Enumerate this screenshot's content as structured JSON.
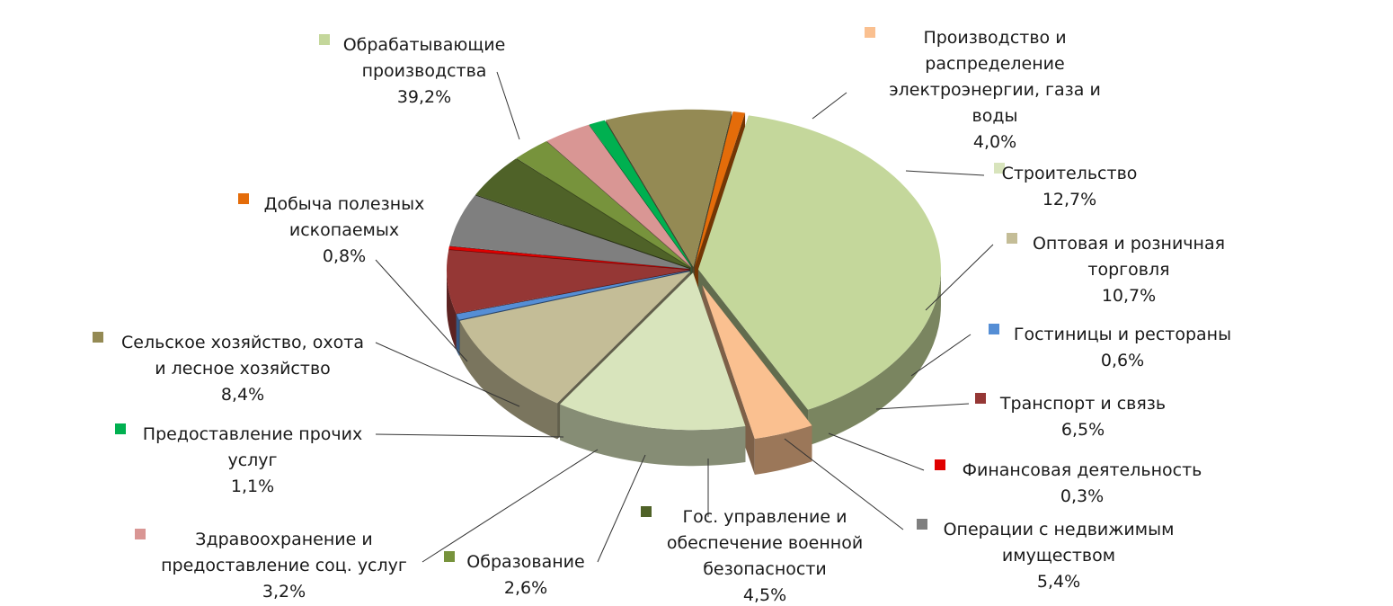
{
  "chart_data": {
    "type": "pie",
    "style": "3d-exploded",
    "title": "",
    "legend": "none",
    "unit": "%",
    "slices": [
      {
        "label_lines": [
          "Обрабатывающие",
          "производства"
        ],
        "value_text": "39,2%",
        "value": 39.2,
        "color": "#c4d79b"
      },
      {
        "label_lines": [
          "Производство и",
          "распределение",
          "электроэнергии, газа и",
          "воды"
        ],
        "value_text": "4,0%",
        "value": 4.0,
        "color": "#fac090"
      },
      {
        "label_lines": [
          "Строительство"
        ],
        "value_text": "12,7%",
        "value": 12.7,
        "color": "#d8e4bc"
      },
      {
        "label_lines": [
          "Оптовая и розничная",
          "торговля"
        ],
        "value_text": "10,7%",
        "value": 10.7,
        "color": "#c4bd97"
      },
      {
        "label_lines": [
          "Гостиницы и рестораны"
        ],
        "value_text": "0,6%",
        "value": 0.6,
        "color": "#558ed5"
      },
      {
        "label_lines": [
          "Транспорт и связь"
        ],
        "value_text": "6,5%",
        "value": 6.5,
        "color": "#953735"
      },
      {
        "label_lines": [
          "Финансовая деятельность"
        ],
        "value_text": "0,3%",
        "value": 0.3,
        "color": "#e00000"
      },
      {
        "label_lines": [
          "Операции с недвижимым",
          "имуществом"
        ],
        "value_text": "5,4%",
        "value": 5.4,
        "color": "#7f7f7f"
      },
      {
        "label_lines": [
          "Гос. управление и",
          "обеспечение военной",
          "безопасности"
        ],
        "value_text": "4,5%",
        "value": 4.5,
        "color": "#4f6228"
      },
      {
        "label_lines": [
          "Образование"
        ],
        "value_text": "2,6%",
        "value": 2.6,
        "color": "#77933c"
      },
      {
        "label_lines": [
          "Здравоохранение и",
          "предоставление соц. услуг"
        ],
        "value_text": "3,2%",
        "value": 3.2,
        "color": "#d99694"
      },
      {
        "label_lines": [
          "Предоставление прочих",
          "услуг"
        ],
        "value_text": "1,1%",
        "value": 1.1,
        "color": "#00b050"
      },
      {
        "label_lines": [
          "Сельское хозяйство, охота",
          "и лесное хозяйство"
        ],
        "value_text": "8,4%",
        "value": 8.4,
        "color": "#948a54"
      },
      {
        "label_lines": [
          "Добыча полезных",
          "ископаемых"
        ],
        "value_text": "0,8%",
        "value": 0.8,
        "color": "#e46c0a"
      }
    ]
  }
}
